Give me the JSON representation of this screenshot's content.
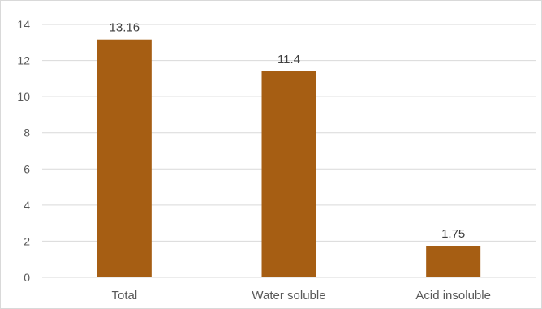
{
  "chart_data": {
    "type": "bar",
    "categories": [
      "Total",
      "Water soluble",
      "Acid insoluble"
    ],
    "values": [
      13.16,
      11.4,
      1.75
    ],
    "data_labels": [
      "13.16",
      "11.4",
      "1.75"
    ],
    "title": "",
    "xlabel": "",
    "ylabel": "",
    "ylim": [
      0,
      14
    ],
    "yticks": [
      0,
      2,
      4,
      6,
      8,
      10,
      12,
      14
    ],
    "grid": true,
    "legend": "none",
    "bar_color": "#A65E13"
  }
}
